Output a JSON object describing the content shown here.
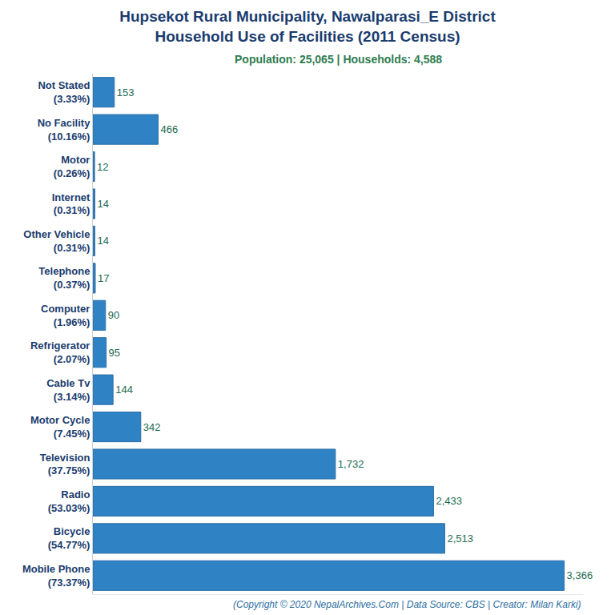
{
  "chart_data": {
    "type": "bar",
    "orientation": "horizontal",
    "title": "Hupsekot Rural Municipality, Nawalparasi_E District\nHousehold Use of Facilities (2011 Census)",
    "subtitle": "Population: 25,065 | Households: 4,588",
    "footer": "(Copyright © 2020 NepalArchives.Com | Data Source: CBS | Creator: Milan Karki)",
    "categories": [
      "Not Stated\n(3.33%)",
      "No Facility\n(10.16%)",
      "Motor\n(0.26%)",
      "Internet\n(0.31%)",
      "Other Vehicle\n(0.31%)",
      "Telephone\n(0.37%)",
      "Computer\n(1.96%)",
      "Refrigerator\n(2.07%)",
      "Cable Tv\n(3.14%)",
      "Motor Cycle\n(7.45%)",
      "Television\n(37.75%)",
      "Radio\n(53.03%)",
      "Bicycle\n(54.77%)",
      "Mobile Phone\n(73.37%)"
    ],
    "values": [
      153,
      466,
      12,
      14,
      14,
      17,
      90,
      95,
      144,
      342,
      1732,
      2433,
      2513,
      3366
    ],
    "value_labels": [
      "153",
      "466",
      "12",
      "14",
      "14",
      "17",
      "90",
      "95",
      "144",
      "342",
      "1,732",
      "2,433",
      "2,513",
      "3,366"
    ],
    "color": "#2f82c4",
    "data_labels": true,
    "xlim": [
      0,
      3500
    ],
    "xticks": [],
    "tick_labels": "y",
    "grid": false
  }
}
